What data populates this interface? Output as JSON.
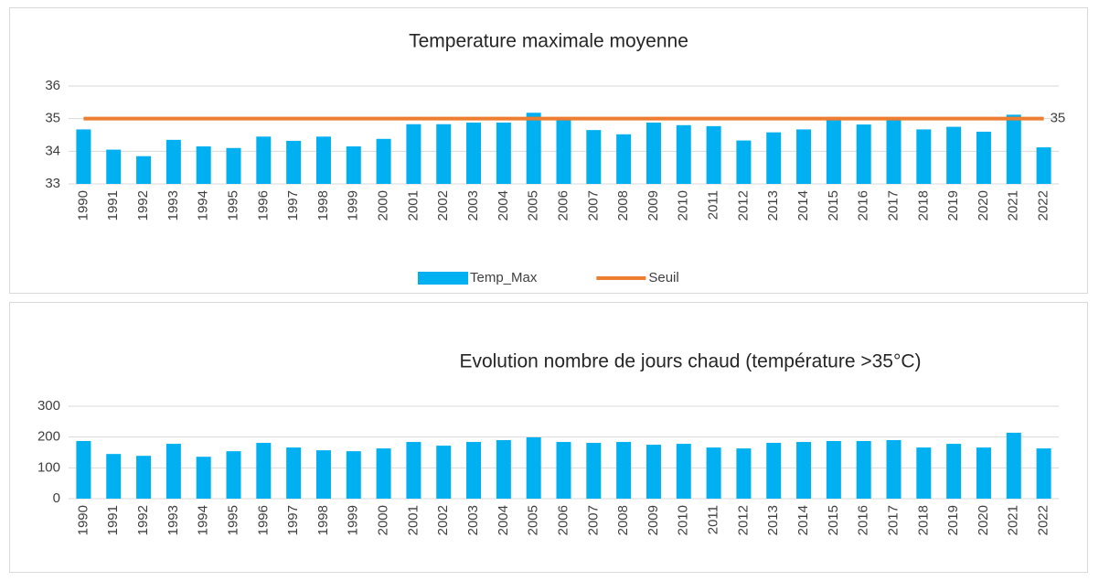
{
  "chart_data": [
    {
      "type": "bar",
      "title": "Temperature maximale moyenne",
      "categories": [
        "1990",
        "1991",
        "1992",
        "1993",
        "1994",
        "1995",
        "1996",
        "1997",
        "1998",
        "1999",
        "2000",
        "2001",
        "2002",
        "2003",
        "2004",
        "2005",
        "2006",
        "2007",
        "2008",
        "2009",
        "2010",
        "2011",
        "2012",
        "2013",
        "2014",
        "2015",
        "2016",
        "2017",
        "2018",
        "2019",
        "2020",
        "2021",
        "2022"
      ],
      "series": [
        {
          "name": "Temp_Max",
          "type": "bar",
          "color": "#00b0f0",
          "values": [
            34.67,
            34.05,
            33.85,
            34.35,
            34.15,
            34.1,
            34.45,
            34.32,
            34.45,
            34.15,
            34.38,
            34.83,
            34.83,
            34.88,
            34.88,
            35.18,
            35.02,
            34.65,
            34.52,
            34.88,
            34.8,
            34.77,
            34.33,
            34.58,
            34.67,
            35.05,
            34.82,
            35.0,
            34.67,
            34.75,
            34.6,
            35.12,
            34.12
          ]
        },
        {
          "name": "Seuil",
          "type": "line",
          "color": "#ed7d31",
          "values": [
            35,
            35,
            35,
            35,
            35,
            35,
            35,
            35,
            35,
            35,
            35,
            35,
            35,
            35,
            35,
            35,
            35,
            35,
            35,
            35,
            35,
            35,
            35,
            35,
            35,
            35,
            35,
            35,
            35,
            35,
            35,
            35,
            35
          ]
        }
      ],
      "ylim": [
        33,
        36
      ],
      "yticks": [
        33,
        34,
        35,
        36
      ],
      "grid": true,
      "legend": "bottom"
    },
    {
      "type": "bar",
      "title": "Evolution nombre de jours chaud (température >35°C)",
      "categories": [
        "1990",
        "1991",
        "1992",
        "1993",
        "1994",
        "1995",
        "1996",
        "1997",
        "1998",
        "1999",
        "2000",
        "2001",
        "2002",
        "2003",
        "2004",
        "2005",
        "2006",
        "2007",
        "2008",
        "2009",
        "2010",
        "2011",
        "2012",
        "2013",
        "2014",
        "2015",
        "2016",
        "2017",
        "2018",
        "2019",
        "2020",
        "2021",
        "2022"
      ],
      "color": "#00b0f0",
      "values": [
        187,
        145,
        139,
        178,
        136,
        154,
        181,
        166,
        157,
        154,
        163,
        184,
        172,
        184,
        190,
        199,
        184,
        181,
        184,
        175,
        178,
        166,
        163,
        181,
        184,
        187,
        187,
        190,
        166,
        178,
        166,
        214,
        163
      ],
      "ylim": [
        0,
        300
      ],
      "yticks": [
        0,
        100,
        200,
        300
      ],
      "grid": true
    }
  ]
}
